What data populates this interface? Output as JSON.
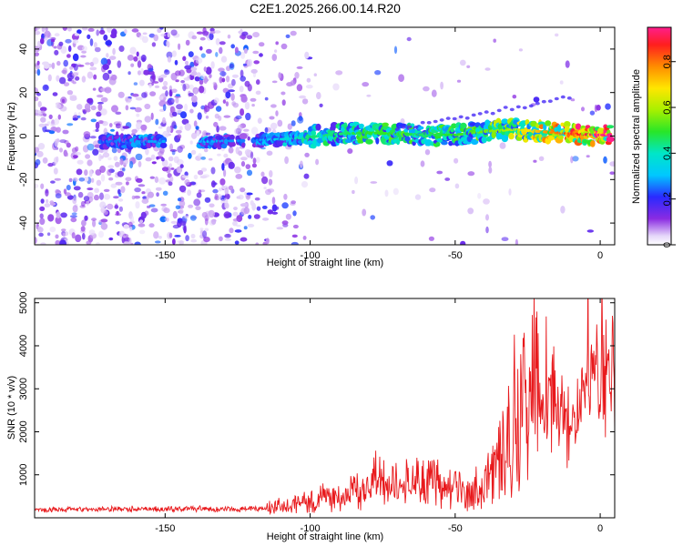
{
  "title": "C2E1.2025.266.00.14.R20",
  "chart_data": [
    {
      "type": "heatmap",
      "xlabel": "Height of straight line (km)",
      "ylabel": "Frequency (Hz)",
      "xlim": [
        -195,
        5
      ],
      "ylim": [
        -50,
        50
      ],
      "xticks": [
        -150,
        -100,
        -50,
        0
      ],
      "yticks": [
        -40,
        -20,
        0,
        20,
        40
      ],
      "colorbar": {
        "label": "Normalized spectral amplitude",
        "range": [
          0,
          0.95
        ],
        "ticks": [
          0,
          0.2,
          0.4,
          0.6,
          0.8
        ],
        "colormap": "rainbow (white-purple-blue-cyan-green-yellow-red-magenta)"
      },
      "ridge": [
        {
          "x": -170,
          "y": -2.5,
          "amp": 0.25
        },
        {
          "x": -160,
          "y": -2.5,
          "amp": 0.28
        },
        {
          "x": -135,
          "y": -2.5,
          "amp": 0.3
        },
        {
          "x": -120,
          "y": -2.0,
          "amp": 0.25
        },
        {
          "x": -110,
          "y": -1.5,
          "amp": 0.35
        },
        {
          "x": -100,
          "y": -0.5,
          "amp": 0.45
        },
        {
          "x": -90,
          "y": 1.0,
          "amp": 0.45
        },
        {
          "x": -80,
          "y": 1.5,
          "amp": 0.5
        },
        {
          "x": -70,
          "y": 1.0,
          "amp": 0.5
        },
        {
          "x": -60,
          "y": 0.5,
          "amp": 0.45
        },
        {
          "x": -50,
          "y": 0.5,
          "amp": 0.5
        },
        {
          "x": -40,
          "y": 2.0,
          "amp": 0.55
        },
        {
          "x": -30,
          "y": 3.0,
          "amp": 0.6
        },
        {
          "x": -20,
          "y": 2.0,
          "amp": 0.75
        },
        {
          "x": -10,
          "y": 1.0,
          "amp": 0.85
        },
        {
          "x": 0,
          "y": 0.5,
          "amp": 0.95
        }
      ]
    },
    {
      "type": "line",
      "xlabel": "Height of straight line (km)",
      "ylabel": "SNR (10 * v/v)",
      "xlim": [
        -195,
        5
      ],
      "ylim": [
        0,
        5100
      ],
      "xticks": [
        -150,
        -100,
        -50,
        0
      ],
      "yticks": [
        1000,
        2000,
        3000,
        4000,
        5000
      ],
      "series": [
        {
          "color": "#e8191c",
          "x": [
            -195,
            -180,
            -170,
            -160,
            -150,
            -140,
            -130,
            -120,
            -115,
            -110,
            -105,
            -100,
            -95,
            -90,
            -85,
            -80,
            -78,
            -75,
            -70,
            -65,
            -60,
            -55,
            -50,
            -45,
            -40,
            -38,
            -35,
            -32,
            -30,
            -28,
            -25,
            -22,
            -20,
            -18,
            -15,
            -12,
            -10,
            -8,
            -6,
            -5,
            -3,
            0,
            5
          ],
          "y": [
            180,
            190,
            200,
            210,
            200,
            210,
            200,
            210,
            230,
            280,
            330,
            400,
            470,
            520,
            600,
            700,
            950,
            780,
            800,
            860,
            820,
            780,
            620,
            600,
            800,
            1100,
            1300,
            1800,
            2200,
            2800,
            2600,
            3000,
            2700,
            2500,
            2900,
            2300,
            2000,
            2500,
            2900,
            3300,
            3000,
            3100,
            3300
          ]
        }
      ]
    }
  ]
}
